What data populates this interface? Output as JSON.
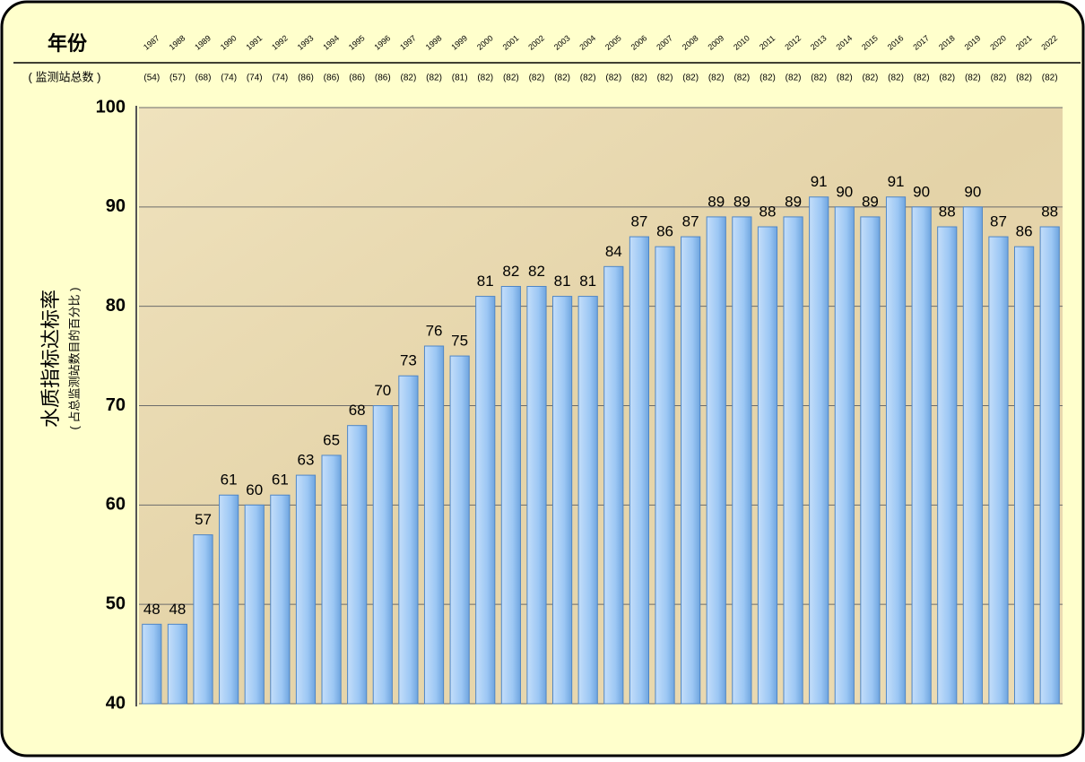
{
  "chart_data": {
    "type": "bar",
    "x_label": "年份",
    "station_label": "( 监测站总数 )",
    "y_label": "水质指标达标率",
    "y_sublabel": "( 占总监测站数目的百分比 )",
    "categories": [
      "1987",
      "1988",
      "1989",
      "1990",
      "1991",
      "1992",
      "1993",
      "1994",
      "1995",
      "1996",
      "1997",
      "1998",
      "1999",
      "2000",
      "2001",
      "2002",
      "2003",
      "2004",
      "2005",
      "2006",
      "2007",
      "2008",
      "2009",
      "2010",
      "2011",
      "2012",
      "2013",
      "2014",
      "2015",
      "2016",
      "2017",
      "2018",
      "2019",
      "2020",
      "2021",
      "2022"
    ],
    "station_counts": [
      "(54)",
      "(57)",
      "(68)",
      "(74)",
      "(74)",
      "(74)",
      "(86)",
      "(86)",
      "(86)",
      "(86)",
      "(82)",
      "(82)",
      "(81)",
      "(82)",
      "(82)",
      "(82)",
      "(82)",
      "(82)",
      "(82)",
      "(82)",
      "(82)",
      "(82)",
      "(82)",
      "(82)",
      "(82)",
      "(82)",
      "(82)",
      "(82)",
      "(82)",
      "(82)",
      "(82)",
      "(82)",
      "(82)",
      "(82)",
      "(82)",
      "(82)"
    ],
    "values": [
      48,
      48,
      57,
      61,
      60,
      61,
      63,
      65,
      68,
      70,
      73,
      76,
      75,
      81,
      82,
      82,
      81,
      81,
      84,
      87,
      86,
      87,
      89,
      89,
      88,
      89,
      91,
      90,
      89,
      91,
      90,
      88,
      90,
      87,
      86,
      88
    ],
    "color": "#9cc7f4",
    "ylim": [
      40,
      100
    ],
    "yticks": [
      40,
      50,
      60,
      70,
      80,
      90,
      100
    ],
    "grid": true
  }
}
